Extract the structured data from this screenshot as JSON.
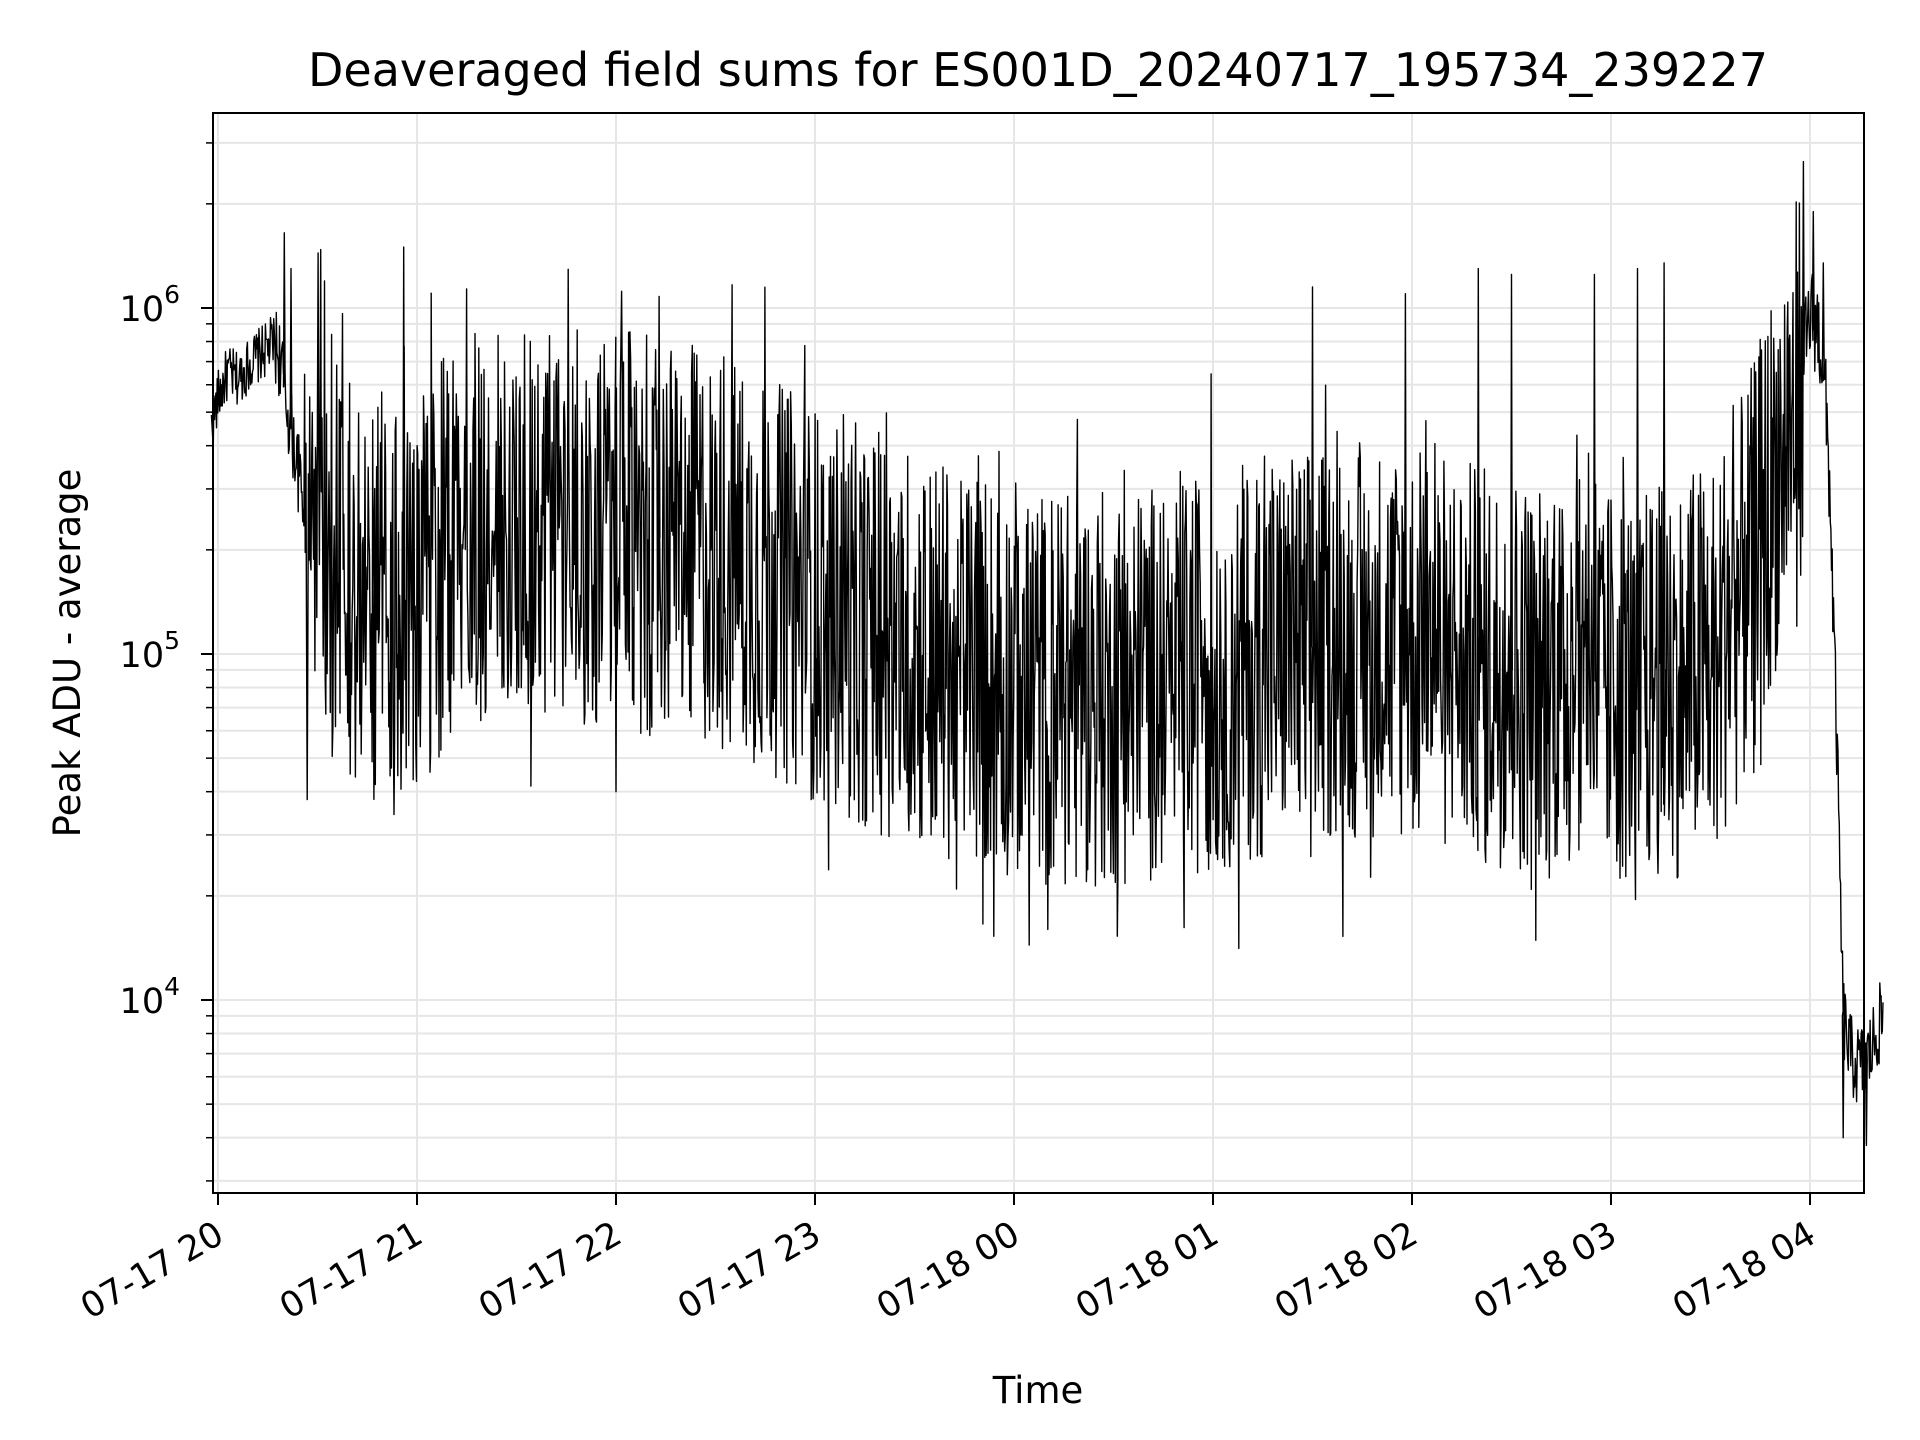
{
  "chart_data": {
    "type": "line",
    "title": "Deaveraged field sums for ES001D_20240717_195734_239227",
    "xlabel": "Time",
    "ylabel": "Peak ADU - average",
    "yscale": "log",
    "ylim": [
      2800,
      3600000
    ],
    "xlim": [
      "07-17 19:57",
      "07-18 04:19"
    ],
    "grid": true,
    "colors": {
      "line": "#000000",
      "grid": "#e6e6e6",
      "frame": "#000000"
    },
    "x_ticks": [
      {
        "label": "07-17 20",
        "minutes": 0
      },
      {
        "label": "07-17 21",
        "minutes": 60
      },
      {
        "label": "07-17 22",
        "minutes": 120
      },
      {
        "label": "07-17 23",
        "minutes": 180
      },
      {
        "label": "07-18 00",
        "minutes": 240
      },
      {
        "label": "07-18 01",
        "minutes": 300
      },
      {
        "label": "07-18 02",
        "minutes": 360
      },
      {
        "label": "07-18 03",
        "minutes": 420
      },
      {
        "label": "07-18 04",
        "minutes": 480
      }
    ],
    "y_ticks": [
      {
        "base": "10",
        "exp": "4",
        "value": 10000
      },
      {
        "base": "10",
        "exp": "5",
        "value": 100000
      },
      {
        "base": "10",
        "exp": "6",
        "value": 1000000
      }
    ],
    "series": [
      {
        "x_minutes": [
          -2,
          0,
          3,
          6,
          10,
          14,
          17,
          19,
          21,
          23,
          25,
          28,
          32,
          36,
          40,
          45,
          50,
          55,
          60,
          70,
          80,
          90,
          100,
          110,
          120,
          130,
          140,
          150,
          160,
          170,
          180,
          190,
          200,
          210,
          220,
          230,
          240,
          250,
          260,
          270,
          280,
          290,
          300,
          310,
          320,
          330,
          340,
          350,
          360,
          370,
          380,
          390,
          400,
          410,
          420,
          430,
          440,
          450,
          455,
          460,
          465,
          470,
          475,
          478,
          480,
          482,
          484,
          486,
          488,
          490,
          492,
          494,
          496,
          498,
          500,
          502
        ],
        "base": [
          450000,
          550000,
          650000,
          620000,
          700000,
          750000,
          800000,
          700000,
          500000,
          400000,
          300000,
          250000,
          200000,
          180000,
          170000,
          160000,
          150000,
          145000,
          150000,
          200000,
          230000,
          240000,
          240000,
          235000,
          230000,
          220000,
          210000,
          200000,
          180000,
          160000,
          140000,
          125000,
          115000,
          105000,
          95000,
          90000,
          85000,
          80000,
          78000,
          80000,
          82000,
          85000,
          90000,
          95000,
          100000,
          105000,
          110000,
          110000,
          105000,
          100000,
          95000,
          90000,
          85000,
          85000,
          82000,
          80000,
          85000,
          100000,
          120000,
          150000,
          220000,
          350000,
          500000,
          700000,
          950000,
          900000,
          700000,
          300000,
          60000,
          9000,
          7000,
          6500,
          6500,
          7000,
          8000,
          9000
        ],
        "spikes": [
          {
            "minutes": 20,
            "value": 1650000
          },
          {
            "minutes": 22,
            "value": 1300000
          },
          {
            "minutes": 56,
            "value": 1500000
          },
          {
            "minutes": 133,
            "value": 1080000
          },
          {
            "minutes": 330,
            "value": 1150000
          },
          {
            "minutes": 358,
            "value": 1100000
          },
          {
            "minutes": 380,
            "value": 1300000
          },
          {
            "minutes": 390,
            "value": 1250000
          },
          {
            "minutes": 415,
            "value": 1250000
          },
          {
            "minutes": 428,
            "value": 1300000
          },
          {
            "minutes": 436,
            "value": 1350000
          },
          {
            "minutes": 478,
            "value": 2650000
          },
          {
            "minutes": 481,
            "value": 1900000
          },
          {
            "minutes": 484,
            "value": 1350000
          }
        ],
        "dips": [
          {
            "minutes": 47,
            "value": 38000
          },
          {
            "minutes": 120,
            "value": 40000
          },
          {
            "minutes": 200,
            "value": 30000
          },
          {
            "minutes": 215,
            "value": 30000
          },
          {
            "minutes": 242,
            "value": 30000
          },
          {
            "minutes": 299,
            "value": 42000
          },
          {
            "minutes": 490,
            "value": 4000
          },
          {
            "minutes": 497,
            "value": 3800
          }
        ]
      }
    ]
  }
}
